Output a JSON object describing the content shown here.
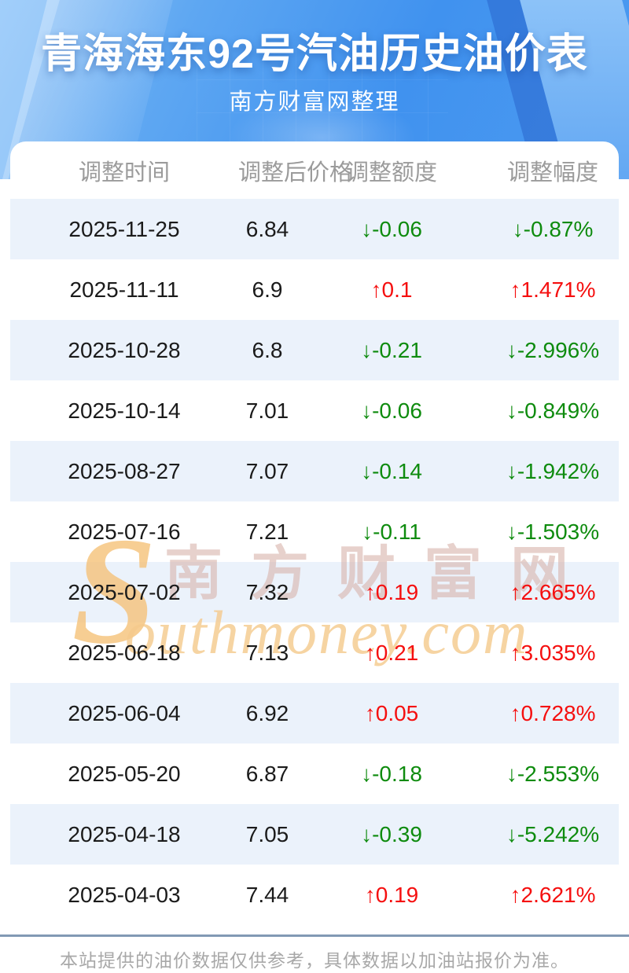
{
  "header": {
    "title": "青海海东92号汽油历史油价表",
    "subtitle": "南方财富网整理"
  },
  "table": {
    "columns": [
      "调整时间",
      "调整后价格",
      "调整额度",
      "调整幅度"
    ],
    "rows": [
      {
        "date": "2025-11-25",
        "price": "6.84",
        "arrow": "↓",
        "change": "-0.06",
        "pct": "-0.87%",
        "direction": "down"
      },
      {
        "date": "2025-11-11",
        "price": "6.9",
        "arrow": "↑",
        "change": "0.1",
        "pct": "1.471%",
        "direction": "up"
      },
      {
        "date": "2025-10-28",
        "price": "6.8",
        "arrow": "↓",
        "change": "-0.21",
        "pct": "-2.996%",
        "direction": "down"
      },
      {
        "date": "2025-10-14",
        "price": "7.01",
        "arrow": "↓",
        "change": "-0.06",
        "pct": "-0.849%",
        "direction": "down"
      },
      {
        "date": "2025-08-27",
        "price": "7.07",
        "arrow": "↓",
        "change": "-0.14",
        "pct": "-1.942%",
        "direction": "down"
      },
      {
        "date": "2025-07-16",
        "price": "7.21",
        "arrow": "↓",
        "change": "-0.11",
        "pct": "-1.503%",
        "direction": "down"
      },
      {
        "date": "2025-07-02",
        "price": "7.32",
        "arrow": "↑",
        "change": "0.19",
        "pct": "2.665%",
        "direction": "up"
      },
      {
        "date": "2025-06-18",
        "price": "7.13",
        "arrow": "↑",
        "change": "0.21",
        "pct": "3.035%",
        "direction": "up"
      },
      {
        "date": "2025-06-04",
        "price": "6.92",
        "arrow": "↑",
        "change": "0.05",
        "pct": "0.728%",
        "direction": "up"
      },
      {
        "date": "2025-05-20",
        "price": "6.87",
        "arrow": "↓",
        "change": "-0.18",
        "pct": "-2.553%",
        "direction": "down"
      },
      {
        "date": "2025-04-18",
        "price": "7.05",
        "arrow": "↓",
        "change": "-0.39",
        "pct": "-5.242%",
        "direction": "down"
      },
      {
        "date": "2025-04-03",
        "price": "7.44",
        "arrow": "↑",
        "change": "0.19",
        "pct": "2.621%",
        "direction": "up"
      }
    ]
  },
  "watermark": {
    "initial": "S",
    "cn": "南方财富网",
    "en": "outhmoney.com"
  },
  "footer": {
    "note": "本站提供的油价数据仅供参考，具体数据以加油站报价为准。"
  },
  "colors": {
    "up": "#f50f0f",
    "down": "#0e8b0e",
    "stripe": "#ebf2fb",
    "header_text": "#9b9b9b",
    "divider": "#8299b4",
    "hero_blue": "#4092ef"
  },
  "chart_data": {
    "type": "table",
    "title": "青海海东92号汽油历史油价表",
    "subtitle": "南方财富网整理",
    "columns": [
      "调整时间",
      "调整后价格",
      "调整额度",
      "调整幅度"
    ],
    "rows": [
      [
        "2025-11-25",
        "6.84",
        "↓-0.06",
        "↓-0.87%"
      ],
      [
        "2025-11-11",
        "6.9",
        "↑0.1",
        "↑1.471%"
      ],
      [
        "2025-10-28",
        "6.8",
        "↓-0.21",
        "↓-2.996%"
      ],
      [
        "2025-10-14",
        "7.01",
        "↓-0.06",
        "↓-0.849%"
      ],
      [
        "2025-08-27",
        "7.07",
        "↓-0.14",
        "↓-1.942%"
      ],
      [
        "2025-07-16",
        "7.21",
        "↓-0.11",
        "↓-1.503%"
      ],
      [
        "2025-07-02",
        "7.32",
        "↑0.19",
        "↑2.665%"
      ],
      [
        "2025-06-18",
        "7.13",
        "↑0.21",
        "↑3.035%"
      ],
      [
        "2025-06-04",
        "6.92",
        "↑0.05",
        "↑0.728%"
      ],
      [
        "2025-05-20",
        "6.87",
        "↓-0.18",
        "↓-2.553%"
      ],
      [
        "2025-04-18",
        "7.05",
        "↓-0.39",
        "↓-5.242%"
      ],
      [
        "2025-04-03",
        "7.44",
        "↑0.19",
        "↑2.621%"
      ]
    ]
  }
}
